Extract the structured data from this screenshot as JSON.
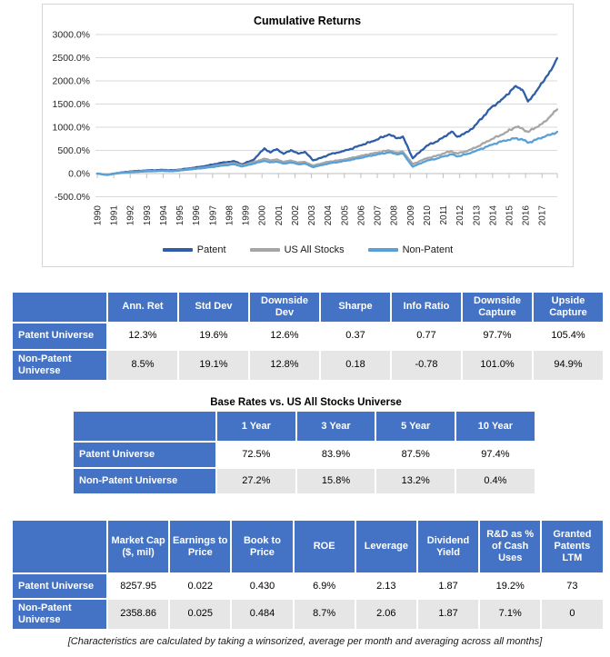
{
  "chart_data": {
    "type": "line",
    "title": "Cumulative Returns",
    "xlabel": "",
    "ylabel": "",
    "ylim": [
      -500,
      3000
    ],
    "y_tick_values": [
      3000,
      2500,
      2000,
      1500,
      1000,
      500,
      0,
      -500
    ],
    "y_tick_labels": [
      "3000.0%",
      "2500.0%",
      "2000.0%",
      "1500.0%",
      "1000.0%",
      "500.0%",
      "0.0%",
      "-500.0%"
    ],
    "x_ticks": [
      1990,
      1991,
      1992,
      1993,
      1994,
      1995,
      1996,
      1997,
      1998,
      1999,
      2000,
      2001,
      2002,
      2003,
      2004,
      2005,
      2006,
      2007,
      2008,
      2009,
      2010,
      2011,
      2012,
      2013,
      2014,
      2015,
      2016,
      2017
    ],
    "x_range": [
      1990,
      2017.92
    ],
    "grid": true,
    "legend_position": "bottom",
    "series": [
      {
        "name": "Patent",
        "color": "#2F5EA8",
        "points": [
          [
            1990.0,
            0
          ],
          [
            1990.6,
            -28
          ],
          [
            1991.2,
            12
          ],
          [
            1992,
            45
          ],
          [
            1993,
            68
          ],
          [
            1994,
            80
          ],
          [
            1994.6,
            72
          ],
          [
            1995.5,
            108
          ],
          [
            1996.5,
            158
          ],
          [
            1997.6,
            238
          ],
          [
            1998.3,
            268
          ],
          [
            1998.8,
            200
          ],
          [
            1999.5,
            300
          ],
          [
            2000.15,
            545
          ],
          [
            2000.5,
            455
          ],
          [
            2000.9,
            530
          ],
          [
            2001.3,
            425
          ],
          [
            2001.75,
            505
          ],
          [
            2002.2,
            430
          ],
          [
            2002.6,
            470
          ],
          [
            2003.1,
            285
          ],
          [
            2003.6,
            340
          ],
          [
            2004.1,
            415
          ],
          [
            2004.7,
            460
          ],
          [
            2005.2,
            510
          ],
          [
            2006.0,
            610
          ],
          [
            2006.8,
            705
          ],
          [
            2007.7,
            845
          ],
          [
            2008.2,
            760
          ],
          [
            2008.55,
            800
          ],
          [
            2009.15,
            330
          ],
          [
            2010.0,
            600
          ],
          [
            2010.6,
            690
          ],
          [
            2011.0,
            780
          ],
          [
            2011.5,
            905
          ],
          [
            2011.85,
            795
          ],
          [
            2012.5,
            900
          ],
          [
            2013.0,
            1060
          ],
          [
            2013.9,
            1420
          ],
          [
            2014.6,
            1610
          ],
          [
            2015.4,
            1890
          ],
          [
            2015.8,
            1810
          ],
          [
            2016.15,
            1555
          ],
          [
            2016.7,
            1800
          ],
          [
            2017.2,
            2060
          ],
          [
            2017.55,
            2230
          ],
          [
            2017.92,
            2490
          ]
        ]
      },
      {
        "name": "US All Stocks",
        "color": "#A6A6A6",
        "points": [
          [
            1990.0,
            0
          ],
          [
            1990.6,
            -24
          ],
          [
            1991.2,
            8
          ],
          [
            1992,
            35
          ],
          [
            1993,
            55
          ],
          [
            1994,
            64
          ],
          [
            1994.6,
            58
          ],
          [
            1995.5,
            92
          ],
          [
            1996.5,
            132
          ],
          [
            1997.6,
            192
          ],
          [
            1998.3,
            228
          ],
          [
            1998.8,
            175
          ],
          [
            1999.5,
            248
          ],
          [
            2000.15,
            322
          ],
          [
            2000.5,
            285
          ],
          [
            2000.9,
            305
          ],
          [
            2001.3,
            252
          ],
          [
            2001.75,
            282
          ],
          [
            2002.2,
            238
          ],
          [
            2002.6,
            252
          ],
          [
            2003.1,
            172
          ],
          [
            2003.6,
            218
          ],
          [
            2004.1,
            258
          ],
          [
            2004.7,
            288
          ],
          [
            2005.2,
            318
          ],
          [
            2006.0,
            382
          ],
          [
            2006.8,
            442
          ],
          [
            2007.7,
            502
          ],
          [
            2008.2,
            452
          ],
          [
            2008.55,
            472
          ],
          [
            2009.15,
            205
          ],
          [
            2010.0,
            330
          ],
          [
            2010.6,
            382
          ],
          [
            2011.0,
            432
          ],
          [
            2011.5,
            482
          ],
          [
            2011.85,
            432
          ],
          [
            2012.5,
            492
          ],
          [
            2013.0,
            565
          ],
          [
            2013.9,
            735
          ],
          [
            2014.6,
            845
          ],
          [
            2015.4,
            1005
          ],
          [
            2015.8,
            975
          ],
          [
            2016.15,
            898
          ],
          [
            2016.7,
            1005
          ],
          [
            2017.2,
            1125
          ],
          [
            2017.55,
            1255
          ],
          [
            2017.92,
            1385
          ]
        ]
      },
      {
        "name": "Non-Patent",
        "color": "#58A1D8",
        "points": [
          [
            1990.0,
            0
          ],
          [
            1990.6,
            -32
          ],
          [
            1991.2,
            4
          ],
          [
            1992,
            30
          ],
          [
            1993,
            48
          ],
          [
            1994,
            58
          ],
          [
            1994.6,
            52
          ],
          [
            1995.5,
            84
          ],
          [
            1996.5,
            120
          ],
          [
            1997.6,
            172
          ],
          [
            1998.3,
            202
          ],
          [
            1998.8,
            152
          ],
          [
            1999.5,
            215
          ],
          [
            2000.15,
            275
          ],
          [
            2000.5,
            242
          ],
          [
            2000.9,
            258
          ],
          [
            2001.3,
            215
          ],
          [
            2001.75,
            240
          ],
          [
            2002.2,
            202
          ],
          [
            2002.6,
            215
          ],
          [
            2003.1,
            138
          ],
          [
            2003.6,
            182
          ],
          [
            2004.1,
            222
          ],
          [
            2004.7,
            252
          ],
          [
            2005.2,
            282
          ],
          [
            2006.0,
            340
          ],
          [
            2006.8,
            398
          ],
          [
            2007.7,
            458
          ],
          [
            2008.2,
            415
          ],
          [
            2008.55,
            435
          ],
          [
            2009.15,
            148
          ],
          [
            2010.0,
            278
          ],
          [
            2010.6,
            322
          ],
          [
            2011.0,
            368
          ],
          [
            2011.5,
            418
          ],
          [
            2011.85,
            368
          ],
          [
            2012.5,
            428
          ],
          [
            2013.0,
            492
          ],
          [
            2013.9,
            618
          ],
          [
            2014.6,
            702
          ],
          [
            2015.4,
            762
          ],
          [
            2015.8,
            738
          ],
          [
            2016.15,
            662
          ],
          [
            2016.7,
            742
          ],
          [
            2017.2,
            802
          ],
          [
            2017.55,
            842
          ],
          [
            2017.92,
            902
          ]
        ]
      }
    ]
  },
  "performance_table": {
    "columns": [
      "Ann. Ret",
      "Std Dev",
      "Downside Dev",
      "Sharpe",
      "Info Ratio",
      "Downside Capture",
      "Upside Capture"
    ],
    "rows": [
      {
        "label": "Patent Universe",
        "values": [
          "12.3%",
          "19.6%",
          "12.6%",
          "0.37",
          "0.77",
          "97.7%",
          "105.4%"
        ]
      },
      {
        "label": "Non-Patent Universe",
        "values": [
          "8.5%",
          "19.1%",
          "12.8%",
          "0.18",
          "-0.78",
          "101.0%",
          "94.9%"
        ]
      }
    ]
  },
  "base_rates_table": {
    "title": "Base Rates vs. US All Stocks Universe",
    "columns": [
      "1 Year",
      "3 Year",
      "5 Year",
      "10 Year"
    ],
    "rows": [
      {
        "label": "Patent Universe",
        "values": [
          "72.5%",
          "83.9%",
          "87.5%",
          "97.4%"
        ]
      },
      {
        "label": "Non-Patent Universe",
        "values": [
          "27.2%",
          "15.8%",
          "13.2%",
          "0.4%"
        ]
      }
    ]
  },
  "characteristics_table": {
    "columns": [
      "Market Cap ($, mil)",
      "Earnings to Price",
      "Book to Price",
      "ROE",
      "Leverage",
      "Dividend Yield",
      "R&D as % of Cash Uses",
      "Granted Patents LTM"
    ],
    "rows": [
      {
        "label": "Patent Universe",
        "values": [
          "8257.95",
          "0.022",
          "0.430",
          "6.9%",
          "2.13",
          "1.87",
          "19.2%",
          "73"
        ]
      },
      {
        "label": "Non-Patent Universe",
        "values": [
          "2358.86",
          "0.025",
          "0.484",
          "8.7%",
          "2.06",
          "1.87",
          "7.1%",
          "0"
        ]
      }
    ]
  },
  "footnote": "[Characteristics are calculated by taking a winsorized, average per month and averaging across all months]",
  "colors": {
    "header_blue": "#4472C4",
    "alt_row_gray": "#E7E6E6",
    "gridline": "#D9D9D9",
    "axis": "#BFBFBF"
  }
}
